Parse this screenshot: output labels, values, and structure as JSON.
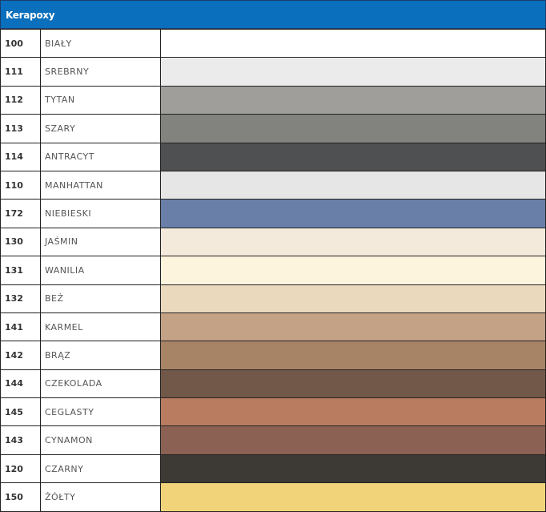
{
  "title": "Kerapoxy",
  "rows": [
    {
      "code": "100",
      "name": "BIAŁY",
      "color": "#ffffff"
    },
    {
      "code": "111",
      "name": "SREBRNY",
      "color": "#ebebeb"
    },
    {
      "code": "112",
      "name": "TYTAN",
      "color": "#9f9e9a"
    },
    {
      "code": "113",
      "name": "SZARY",
      "color": "#82827e"
    },
    {
      "code": "114",
      "name": "ANTRACYT",
      "color": "#4e5051"
    },
    {
      "code": "110",
      "name": "MANHATTAN",
      "color": "#e6e6e6"
    },
    {
      "code": "172",
      "name": "NIEBIESKI",
      "color": "#6a7fa8"
    },
    {
      "code": "130",
      "name": "JAŚMIN",
      "color": "#f3eadb"
    },
    {
      "code": "131",
      "name": "WANILIA",
      "color": "#fdf4de"
    },
    {
      "code": "132",
      "name": "BEŻ",
      "color": "#ebd9bd"
    },
    {
      "code": "141",
      "name": "KARMEL",
      "color": "#c4a286"
    },
    {
      "code": "142",
      "name": "BRĄZ",
      "color": "#a88466"
    },
    {
      "code": "144",
      "name": "CZEKOLADA",
      "color": "#725849"
    },
    {
      "code": "145",
      "name": "CEGLASTY",
      "color": "#ba7c60"
    },
    {
      "code": "143",
      "name": "CYNAMON",
      "color": "#8b6153"
    },
    {
      "code": "120",
      "name": "CZARNY",
      "color": "#3d3a36"
    },
    {
      "code": "150",
      "name": "ŻÓŁTY",
      "color": "#f1d47a"
    }
  ]
}
